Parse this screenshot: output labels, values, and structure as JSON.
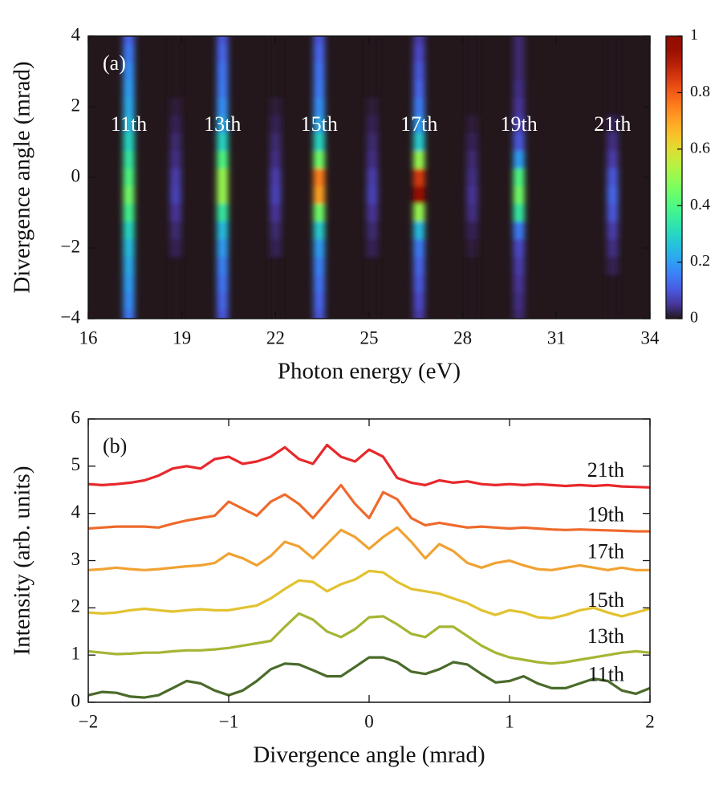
{
  "chart_data": [
    {
      "type": "heatmap",
      "annotation": "(a)",
      "xlabel": "Photon energy (eV)",
      "ylabel": "Divergence angle (mrad)",
      "xlim": [
        16,
        34
      ],
      "ylim": [
        -4,
        4
      ],
      "xticks": [
        16,
        19,
        22,
        25,
        28,
        31,
        34
      ],
      "yticks": [
        {
          "value": -4,
          "label": "−4"
        },
        {
          "value": -2,
          "label": "−2"
        },
        0,
        2,
        4
      ],
      "colormap": "turbo",
      "clim": [
        0,
        1
      ],
      "cticks": [
        0,
        0.2,
        0.4,
        0.6,
        0.8,
        1
      ],
      "y": [
        -4,
        -3.5,
        -3,
        -2.5,
        -2,
        -1.5,
        -1,
        -0.5,
        0,
        0.5,
        1,
        1.5,
        2,
        2.5,
        3,
        3.5,
        4
      ],
      "stripes": [
        {
          "label": "11th",
          "energy": 17.3,
          "values": [
            0.15,
            0.18,
            0.2,
            0.22,
            0.25,
            0.3,
            0.38,
            0.45,
            0.4,
            0.35,
            0.3,
            0.25,
            0.22,
            0.2,
            0.18,
            0.15,
            0.12
          ]
        },
        {
          "label": null,
          "energy": 18.8,
          "values": [
            0,
            0,
            0,
            0,
            0.02,
            0.03,
            0.05,
            0.07,
            0.06,
            0.04,
            0.03,
            0.02,
            0.01,
            0,
            0,
            0,
            0
          ]
        },
        {
          "label": "13th",
          "energy": 20.3,
          "values": [
            0.1,
            0.12,
            0.14,
            0.16,
            0.2,
            0.25,
            0.35,
            0.5,
            0.5,
            0.4,
            0.3,
            0.22,
            0.18,
            0.15,
            0.14,
            0.12,
            0.1
          ]
        },
        {
          "label": null,
          "energy": 22.0,
          "values": [
            0,
            0,
            0,
            0,
            0.02,
            0.03,
            0.05,
            0.07,
            0.06,
            0.04,
            0.03,
            0.02,
            0.01,
            0,
            0,
            0,
            0
          ]
        },
        {
          "label": "15th",
          "energy": 23.4,
          "values": [
            0.1,
            0.12,
            0.14,
            0.16,
            0.2,
            0.28,
            0.45,
            0.7,
            0.75,
            0.45,
            0.3,
            0.22,
            0.18,
            0.15,
            0.14,
            0.12,
            0.1
          ]
        },
        {
          "label": null,
          "energy": 25.1,
          "values": [
            0,
            0,
            0,
            0,
            0.02,
            0.03,
            0.05,
            0.07,
            0.06,
            0.04,
            0.03,
            0.02,
            0.01,
            0,
            0,
            0,
            0
          ]
        },
        {
          "label": "17th",
          "energy": 26.6,
          "values": [
            0.06,
            0.08,
            0.1,
            0.12,
            0.15,
            0.25,
            0.5,
            0.95,
            0.85,
            0.5,
            0.28,
            0.2,
            0.15,
            0.12,
            0.1,
            0.08,
            0.06
          ]
        },
        {
          "label": null,
          "energy": 28.3,
          "values": [
            0,
            0,
            0,
            0,
            0.01,
            0.02,
            0.04,
            0.05,
            0.04,
            0.03,
            0.02,
            0.01,
            0,
            0,
            0,
            0,
            0
          ]
        },
        {
          "label": "19th",
          "energy": 29.8,
          "values": [
            0.03,
            0.04,
            0.05,
            0.06,
            0.08,
            0.15,
            0.35,
            0.45,
            0.4,
            0.2,
            0.1,
            0.07,
            0.05,
            0.04,
            0.03,
            0.03,
            0.03
          ]
        },
        {
          "label": "21th",
          "energy": 32.8,
          "values": [
            0,
            0,
            0,
            0.02,
            0.04,
            0.06,
            0.1,
            0.12,
            0.1,
            0.06,
            0.04,
            0.02,
            0,
            0,
            0,
            0,
            0
          ]
        }
      ]
    },
    {
      "type": "line",
      "annotation": "(b)",
      "xlabel": "Divergence angle (mrad)",
      "ylabel": "Intensity (arb. units)",
      "xlim": [
        -2,
        2
      ],
      "ylim": [
        0,
        6
      ],
      "xticks": [
        {
          "value": -2,
          "label": "−2"
        },
        {
          "value": -1,
          "label": "−1"
        },
        0,
        1,
        2
      ],
      "yticks": [
        0,
        1,
        2,
        3,
        4,
        5,
        6
      ],
      "x": [
        -2,
        -1.9,
        -1.8,
        -1.7,
        -1.6,
        -1.5,
        -1.4,
        -1.3,
        -1.2,
        -1.1,
        -1,
        -0.9,
        -0.8,
        -0.7,
        -0.6,
        -0.5,
        -0.4,
        -0.3,
        -0.2,
        -0.1,
        0,
        0.1,
        0.2,
        0.3,
        0.4,
        0.5,
        0.6,
        0.7,
        0.8,
        0.9,
        1,
        1.1,
        1.2,
        1.3,
        1.4,
        1.5,
        1.6,
        1.7,
        1.8,
        1.9,
        2
      ],
      "series": [
        {
          "name": "11th",
          "color": "#4a6b2a",
          "values": [
            0.15,
            0.22,
            0.2,
            0.12,
            0.1,
            0.15,
            0.3,
            0.45,
            0.4,
            0.25,
            0.15,
            0.25,
            0.45,
            0.7,
            0.82,
            0.8,
            0.68,
            0.55,
            0.55,
            0.75,
            0.95,
            0.95,
            0.85,
            0.65,
            0.6,
            0.7,
            0.85,
            0.8,
            0.6,
            0.42,
            0.45,
            0.55,
            0.4,
            0.3,
            0.3,
            0.4,
            0.5,
            0.45,
            0.25,
            0.18,
            0.3
          ]
        },
        {
          "name": "13th",
          "color": "#a6b534",
          "values": [
            1.08,
            1.05,
            1.02,
            1.03,
            1.05,
            1.05,
            1.08,
            1.1,
            1.1,
            1.12,
            1.15,
            1.2,
            1.25,
            1.3,
            1.6,
            1.88,
            1.75,
            1.5,
            1.38,
            1.55,
            1.8,
            1.82,
            1.65,
            1.45,
            1.38,
            1.6,
            1.6,
            1.4,
            1.2,
            1.05,
            0.95,
            0.9,
            0.85,
            0.82,
            0.85,
            0.9,
            0.95,
            1.0,
            1.05,
            1.08,
            1.05
          ]
        },
        {
          "name": "15th",
          "color": "#e2c230",
          "values": [
            1.9,
            1.88,
            1.9,
            1.95,
            1.98,
            1.95,
            1.92,
            1.95,
            1.97,
            1.95,
            1.95,
            2.0,
            2.05,
            2.2,
            2.4,
            2.58,
            2.55,
            2.35,
            2.5,
            2.6,
            2.78,
            2.75,
            2.55,
            2.4,
            2.35,
            2.3,
            2.2,
            2.1,
            1.95,
            1.85,
            1.95,
            1.9,
            1.8,
            1.78,
            1.85,
            1.95,
            2.0,
            1.9,
            1.82,
            1.9,
            1.98
          ]
        },
        {
          "name": "17th",
          "color": "#f0a232",
          "values": [
            2.8,
            2.82,
            2.85,
            2.82,
            2.8,
            2.82,
            2.85,
            2.88,
            2.9,
            2.95,
            3.15,
            3.05,
            2.9,
            3.1,
            3.4,
            3.3,
            3.05,
            3.35,
            3.65,
            3.5,
            3.25,
            3.5,
            3.7,
            3.4,
            3.05,
            3.35,
            3.2,
            2.95,
            2.85,
            2.95,
            3.0,
            2.9,
            2.82,
            2.8,
            2.85,
            2.9,
            2.85,
            2.8,
            2.85,
            2.8,
            2.8
          ]
        },
        {
          "name": "19th",
          "color": "#ee6a2c",
          "values": [
            3.68,
            3.7,
            3.72,
            3.72,
            3.72,
            3.7,
            3.78,
            3.85,
            3.9,
            3.95,
            4.25,
            4.1,
            3.95,
            4.25,
            4.4,
            4.2,
            3.9,
            4.25,
            4.6,
            4.2,
            3.9,
            4.45,
            4.3,
            3.9,
            3.75,
            3.8,
            3.75,
            3.7,
            3.72,
            3.7,
            3.68,
            3.7,
            3.68,
            3.66,
            3.65,
            3.66,
            3.65,
            3.64,
            3.63,
            3.62,
            3.62
          ]
        },
        {
          "name": "21th",
          "color": "#e8282c",
          "values": [
            4.62,
            4.6,
            4.62,
            4.65,
            4.7,
            4.8,
            4.95,
            5.0,
            4.95,
            5.15,
            5.2,
            5.05,
            5.1,
            5.2,
            5.4,
            5.15,
            5.05,
            5.45,
            5.2,
            5.1,
            5.35,
            5.2,
            4.75,
            4.65,
            4.6,
            4.7,
            4.65,
            4.68,
            4.62,
            4.6,
            4.62,
            4.6,
            4.62,
            4.6,
            4.58,
            4.6,
            4.58,
            4.6,
            4.57,
            4.56,
            4.55
          ]
        }
      ]
    }
  ]
}
